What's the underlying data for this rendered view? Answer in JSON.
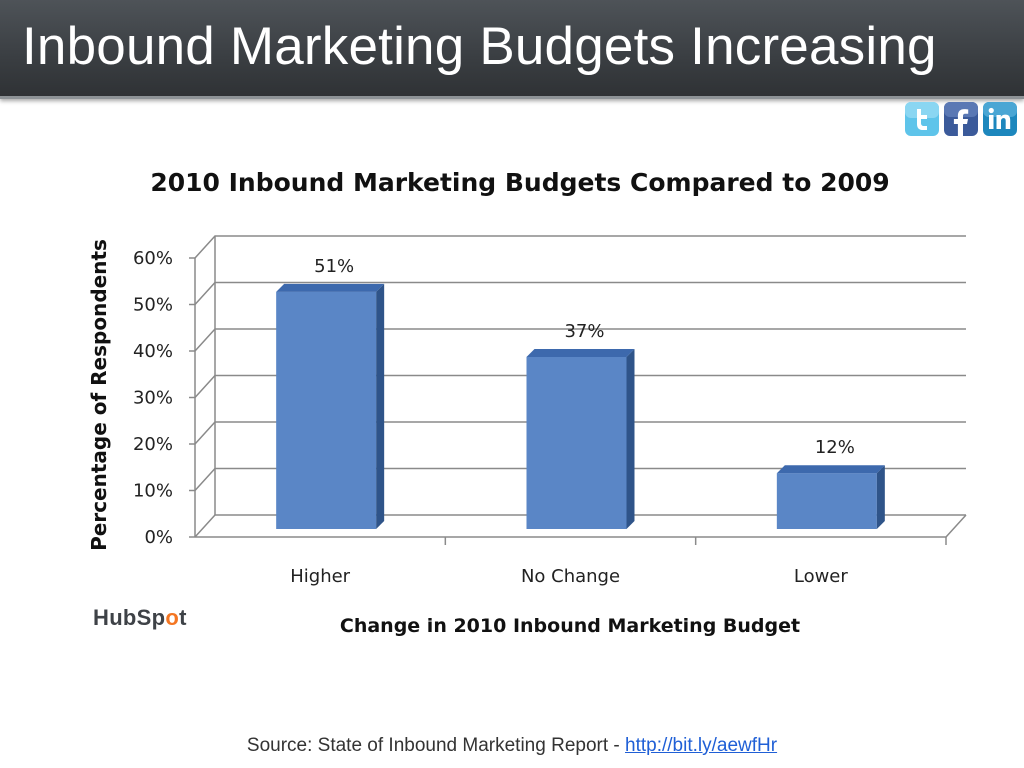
{
  "slide": {
    "title": "Inbound Marketing Budgets Increasing",
    "source_text": "Source: State of Inbound Marketing Report - ",
    "source_link": "http://bit.ly/aewfHr",
    "logo_text_1": "HubSp",
    "logo_text_2": "o",
    "logo_text_3": "t"
  },
  "social_icons": [
    {
      "name": "twitter-icon",
      "color": "#5ec4ea"
    },
    {
      "name": "facebook-icon",
      "color": "#3b5a9a"
    },
    {
      "name": "linkedin-icon",
      "color": "#1d87bd"
    }
  ],
  "chart_data": {
    "type": "bar",
    "title": "2010 Inbound Marketing Budgets Compared to 2009",
    "xlabel": "Change in 2010 Inbound Marketing Budget",
    "ylabel": "Percentage of Respondents",
    "categories": [
      "Higher",
      "No Change",
      "Lower"
    ],
    "values": [
      51,
      37,
      12
    ],
    "data_labels": [
      "51%",
      "37%",
      "12%"
    ],
    "yticks": [
      "0%",
      "10%",
      "20%",
      "30%",
      "40%",
      "50%",
      "60%"
    ],
    "ylim": [
      0,
      60
    ],
    "grid": true,
    "style": "3d-column",
    "bar_color": "#5a86c6"
  }
}
